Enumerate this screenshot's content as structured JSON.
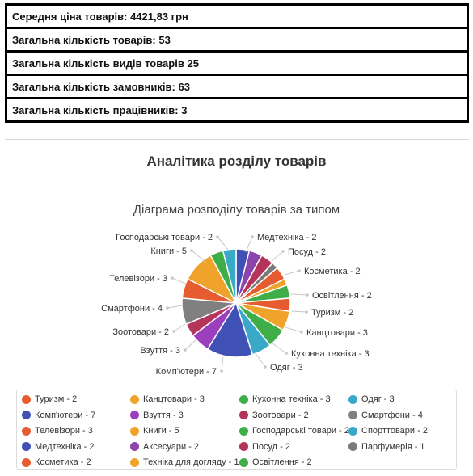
{
  "stats": [
    {
      "label": "Середня ціна товарів:",
      "value": "4421,83 грн"
    },
    {
      "label": "Загальна кількість товарів:",
      "value": "53"
    },
    {
      "label": "Загальна кількість видів товарів",
      "value": "25"
    },
    {
      "label": "Загальна кількість замовників:",
      "value": "63"
    },
    {
      "label": "Загальна кількість працівників:",
      "value": "3"
    }
  ],
  "section_title": "Аналітика розділу товарів",
  "chart_data": {
    "type": "pie",
    "title": "Діаграма розподілу товарів за типом",
    "slice_labels": [
      "Медтехніка - 2",
      "Посуд - 2",
      "Косметика - 2",
      "Освітлення - 2",
      "Туризм - 2",
      "Канцтовари - 3",
      "Кухонна техніка - 3",
      "Одяг - 3",
      "Комп'ютери - 7",
      "Взуття - 3",
      "Зоотовари - 2",
      "Смартфони - 4",
      "Телевізори - 3",
      "Книги - 5",
      "Господарські товари - 2"
    ],
    "slices": [
      {
        "name": "Медтехніка",
        "value": 2,
        "color": "#3f51b5"
      },
      {
        "name": "Аксесуари",
        "value": 2,
        "color": "#8e44ad"
      },
      {
        "name": "Посуд",
        "value": 2,
        "color": "#b5345a"
      },
      {
        "name": "Парфумерія",
        "value": 1,
        "color": "#7a7a7a"
      },
      {
        "name": "Косметика",
        "value": 2,
        "color": "#e65b2f"
      },
      {
        "name": "Техніка для догляду",
        "value": 1,
        "color": "#f0a32b"
      },
      {
        "name": "Освітлення",
        "value": 2,
        "color": "#3fae49"
      },
      {
        "name": "Туризм",
        "value": 2,
        "color": "#e65b2f"
      },
      {
        "name": "Канцтовари",
        "value": 3,
        "color": "#f0a32b"
      },
      {
        "name": "Кухонна техніка",
        "value": 3,
        "color": "#3fae49"
      },
      {
        "name": "Одяг",
        "value": 3,
        "color": "#3aa8c9"
      },
      {
        "name": "Комп'ютери",
        "value": 7,
        "color": "#3f51b5"
      },
      {
        "name": "Взуття",
        "value": 3,
        "color": "#9b3fbf"
      },
      {
        "name": "Зоотовари",
        "value": 2,
        "color": "#b5345a"
      },
      {
        "name": "Смартфони",
        "value": 4,
        "color": "#808080"
      },
      {
        "name": "Телевізори",
        "value": 3,
        "color": "#e65b2f"
      },
      {
        "name": "Книги",
        "value": 5,
        "color": "#f0a32b"
      },
      {
        "name": "Господарські товари",
        "value": 2,
        "color": "#3fae49"
      },
      {
        "name": "Спорттовари",
        "value": 2,
        "color": "#3aa8c9"
      }
    ],
    "legend": [
      {
        "label": "Туризм - 2",
        "color": "#e65b2f"
      },
      {
        "label": "Канцтовари - 3",
        "color": "#f0a32b"
      },
      {
        "label": "Кухонна техніка - 3",
        "color": "#3fae49"
      },
      {
        "label": "Одяг - 3",
        "color": "#3aa8c9"
      },
      {
        "label": "Комп'ютери - 7",
        "color": "#3f51b5"
      },
      {
        "label": "Взуття - 3",
        "color": "#9b3fbf"
      },
      {
        "label": "Зоотовари - 2",
        "color": "#b5345a"
      },
      {
        "label": "Смартфони - 4",
        "color": "#808080"
      },
      {
        "label": "Телевізори - 3",
        "color": "#e65b2f"
      },
      {
        "label": "Книги - 5",
        "color": "#f0a32b"
      },
      {
        "label": "Господарські товари - 2",
        "color": "#3fae49"
      },
      {
        "label": "Спорттовари - 2",
        "color": "#3aa8c9"
      },
      {
        "label": "Медтехніка - 2",
        "color": "#3f51b5"
      },
      {
        "label": "Аксесуари - 2",
        "color": "#8e44ad"
      },
      {
        "label": "Посуд - 2",
        "color": "#b5345a"
      },
      {
        "label": "Парфумерія - 1",
        "color": "#7a7a7a"
      },
      {
        "label": "Косметика - 2",
        "color": "#e65b2f"
      },
      {
        "label": "Техніка для догляду - 1",
        "color": "#f0a32b"
      },
      {
        "label": "Освітлення - 2",
        "color": "#3fae49"
      }
    ]
  }
}
